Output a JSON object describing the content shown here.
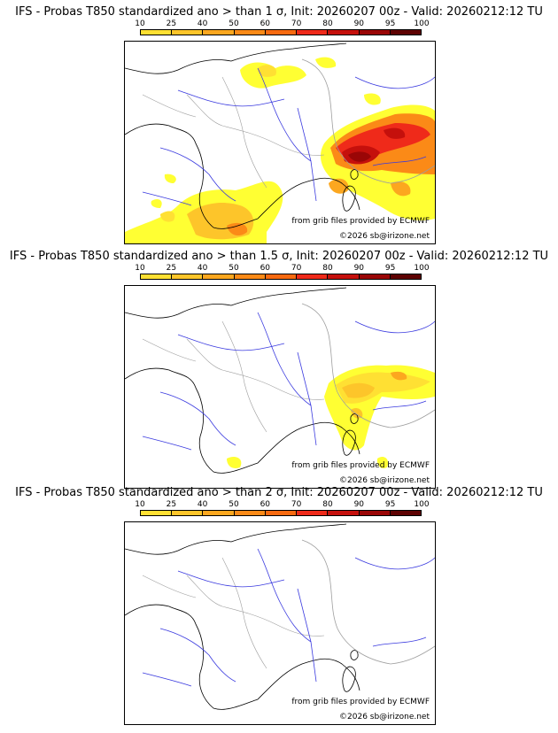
{
  "legend": {
    "labels": [
      "10",
      "25",
      "40",
      "50",
      "60",
      "70",
      "80",
      "90",
      "95",
      "100"
    ],
    "colors": [
      "#ffff00",
      "#ffe033",
      "#fdc52a",
      "#fca71f",
      "#fb8a17",
      "#f86a10",
      "#ef2a1a",
      "#c5100c",
      "#9a0606",
      "#5e0202"
    ]
  },
  "panels": [
    {
      "title": "IFS - Probas T850  standardized ano > than 1 σ, Init: 20260207 00z - Valid: 20260212:12 TU",
      "credit_source": "from grib files provided by ECMWF",
      "credit_copy": "©2026 sb@irizone.net"
    },
    {
      "title": "IFS - Probas T850  standardized ano > than 1.5 σ, Init: 20260207 00z - Valid: 20260212:12 TU",
      "credit_source": "from grib files provided by ECMWF",
      "credit_copy": "©2026 sb@irizone.net"
    },
    {
      "title": "IFS - Probas T850  standardized ano > than 2 σ, Init: 20260207 00z - Valid: 20260212:12 TU",
      "credit_source": "from grib files provided by ECMWF",
      "credit_copy": "©2026 sb@irizone.net"
    }
  ],
  "colors": {
    "coast": "#000000",
    "rivers": "#3a3adf",
    "borders": "#9e9e9e"
  }
}
